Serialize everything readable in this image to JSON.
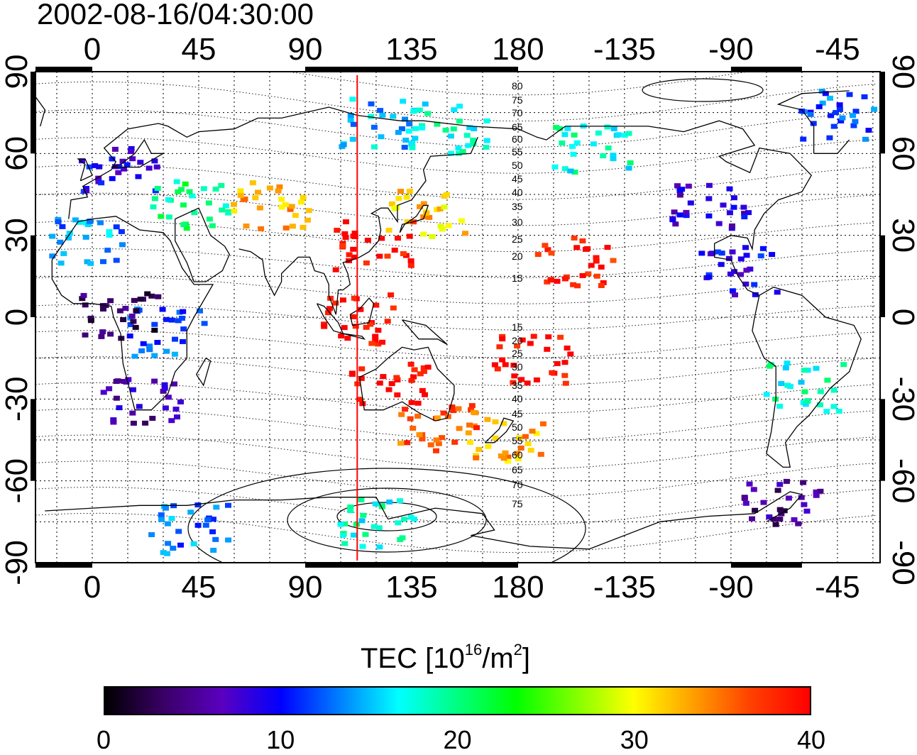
{
  "title": "2002-08-16/04:30:00",
  "map": {
    "top_lon_labels": [
      "0",
      "45",
      "90",
      "135",
      "180",
      "-135",
      "-90",
      "-45"
    ],
    "bottom_lon_labels": [
      "0",
      "45",
      "90",
      "135",
      "180",
      "-135",
      "-90",
      "-45"
    ],
    "left_lat_labels": [
      "90",
      "60",
      "30",
      "0",
      "-30",
      "-60",
      "-90"
    ],
    "right_lat_labels": [
      "90",
      "60",
      "30",
      "0",
      "-30",
      "-60",
      "-90"
    ],
    "lon_ticks": [
      0,
      45,
      90,
      135,
      180,
      -135,
      -90,
      -45
    ],
    "lat_ticks": [
      90,
      60,
      30,
      0,
      -30,
      -60,
      -90
    ],
    "central_meridian_lon": 112,
    "subsolar_marker_color": "#ff0000",
    "contour_labels_north": [
      "80",
      "75",
      "70",
      "65",
      "60",
      "55",
      "50",
      "45",
      "40",
      "35",
      "30",
      "25",
      "20",
      "15"
    ],
    "contour_labels_south": [
      "15",
      "20",
      "25",
      "30",
      "35",
      "40",
      "45",
      "50",
      "55",
      "60",
      "65",
      "70",
      "75"
    ]
  },
  "tec_regions": [
    {
      "name": "europe",
      "lon": 10,
      "lat": 55,
      "value": 9
    },
    {
      "name": "north-africa-edge",
      "lon": -2,
      "lat": 28,
      "value": 14
    },
    {
      "name": "middle-east",
      "lon": 40,
      "lat": 42,
      "value": 20
    },
    {
      "name": "central-asia",
      "lon": 75,
      "lat": 42,
      "value": 33
    },
    {
      "name": "japan",
      "lon": 140,
      "lat": 38,
      "value": 32
    },
    {
      "name": "china",
      "lon": 118,
      "lat": 27,
      "value": 40
    },
    {
      "name": "southeast-asia",
      "lon": 110,
      "lat": 0,
      "value": 40
    },
    {
      "name": "australia-north",
      "lon": 125,
      "lat": -25,
      "value": 40
    },
    {
      "name": "australia-south",
      "lon": 145,
      "lat": -40,
      "value": 36
    },
    {
      "name": "new-zealand",
      "lon": 174,
      "lat": -43,
      "value": 33
    },
    {
      "name": "pacific-islands",
      "lon": -175,
      "lat": -15,
      "value": 40
    },
    {
      "name": "hawaii",
      "lon": -157,
      "lat": 21,
      "value": 39
    },
    {
      "name": "north-america",
      "lon": -100,
      "lat": 42,
      "value": 8
    },
    {
      "name": "alaska",
      "lon": -150,
      "lat": 62,
      "value": 18
    },
    {
      "name": "greenland",
      "lon": -45,
      "lat": 75,
      "value": 12
    },
    {
      "name": "central-america",
      "lon": -88,
      "lat": 18,
      "value": 9
    },
    {
      "name": "south-america",
      "lon": -60,
      "lat": -25,
      "value": 18
    },
    {
      "name": "patagonia",
      "lon": -70,
      "lat": -68,
      "value": 5
    },
    {
      "name": "southern-africa",
      "lon": 20,
      "lat": -30,
      "value": 6
    },
    {
      "name": "east-africa",
      "lon": 30,
      "lat": -5,
      "value": 12
    },
    {
      "name": "antarctica",
      "lon": 120,
      "lat": -75,
      "value": 18
    },
    {
      "name": "antarctica-west",
      "lon": 40,
      "lat": -77,
      "value": 13
    },
    {
      "name": "arctic-asia",
      "lon": 120,
      "lat": 72,
      "value": 15
    },
    {
      "name": "siberia-east",
      "lon": 150,
      "lat": 70,
      "value": 18
    },
    {
      "name": "northwest-africa",
      "lon": 10,
      "lat": 2,
      "value": 3
    }
  ],
  "colorbar": {
    "title": "TEC  [10",
    "title_sup1": "16",
    "title_mid": "/m",
    "title_sup2": "2",
    "title_end": "]",
    "min": 0,
    "max": 40,
    "tick_values": [
      0,
      10,
      20,
      30,
      40
    ],
    "tick_labels": [
      "0",
      "10",
      "20",
      "30",
      "40"
    ],
    "colormap": [
      "#000000",
      "#3a0066",
      "#5a00c0",
      "#0000ff",
      "#0080ff",
      "#00ffff",
      "#00ff80",
      "#00ff00",
      "#80ff00",
      "#ffff00",
      "#ffa000",
      "#ff4000",
      "#ff0000"
    ]
  }
}
